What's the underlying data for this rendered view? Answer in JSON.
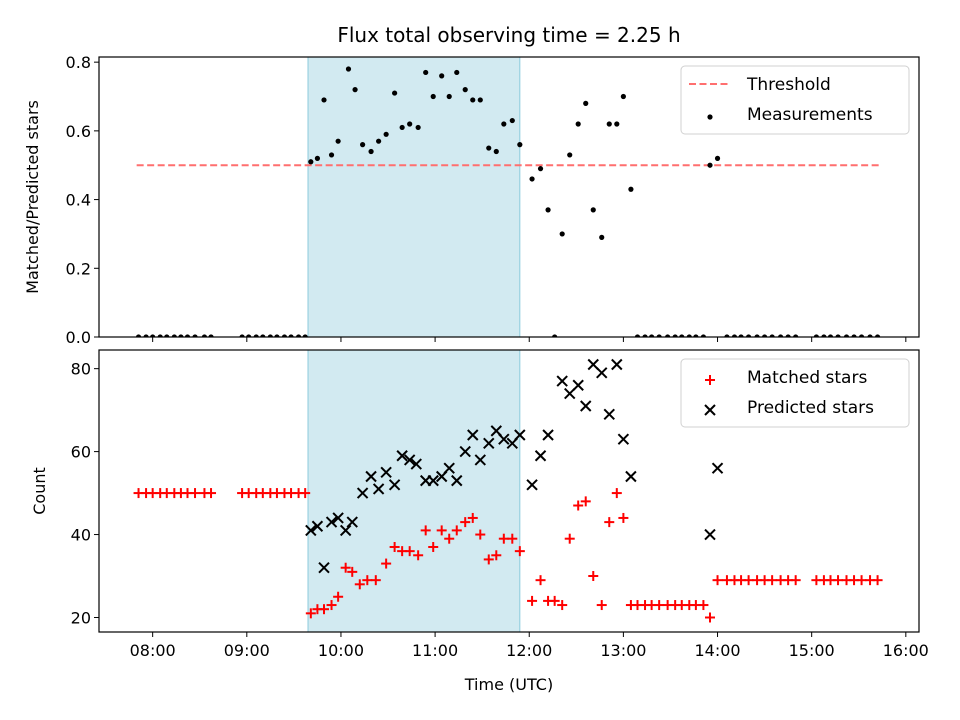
{
  "chart_data": {
    "title": "Flux total observing time = 2.25 h",
    "xlabel": "Time (UTC)",
    "x_tick_labels": [
      "08:00",
      "09:00",
      "10:00",
      "11:00",
      "12:00",
      "13:00",
      "14:00",
      "15:00",
      "16:00"
    ],
    "x_ticks_hours": [
      8,
      9,
      10,
      11,
      12,
      13,
      14,
      15,
      16
    ],
    "xlim_hours": [
      7.43,
      16.14
    ],
    "shaded_interval_hours": [
      9.65,
      11.9
    ],
    "shade_color": "#add8e6",
    "panels": [
      {
        "type": "scatter",
        "ylabel": "Matched/Predicted stars",
        "ylim": [
          0,
          0.815
        ],
        "y_ticks": [
          0.0,
          0.2,
          0.4,
          0.6,
          0.8
        ],
        "y_tick_labels": [
          "0.0",
          "0.2",
          "0.4",
          "0.6",
          "0.8"
        ],
        "legend_position": "top-right",
        "threshold": {
          "name": "Threshold",
          "value": 0.5,
          "x_range_hours": [
            7.83,
            15.73
          ],
          "color": "#ff6f6f"
        },
        "series": [
          {
            "name": "Measurements",
            "color": "#000000",
            "marker": "dot",
            "x_hours": [
              7.85,
              7.93,
              8.0,
              8.08,
              8.15,
              8.23,
              8.3,
              8.37,
              8.45,
              8.55,
              8.62,
              8.95,
              9.02,
              9.1,
              9.17,
              9.25,
              9.32,
              9.4,
              9.47,
              9.55,
              9.62,
              9.68,
              9.75,
              9.82,
              9.9,
              9.97,
              10.08,
              10.15,
              10.23,
              10.32,
              10.4,
              10.48,
              10.57,
              10.65,
              10.73,
              10.82,
              10.9,
              10.98,
              11.07,
              11.15,
              11.23,
              11.32,
              11.4,
              11.48,
              11.57,
              11.65,
              11.73,
              11.82,
              11.9,
              12.03,
              12.12,
              12.2,
              12.27,
              12.35,
              12.43,
              12.52,
              12.6,
              12.68,
              12.77,
              12.85,
              12.93,
              13.0,
              13.08,
              13.15,
              13.23,
              13.3,
              13.38,
              13.47,
              13.55,
              13.62,
              13.7,
              13.77,
              13.85,
              13.92,
              14.0,
              14.1,
              14.18,
              14.25,
              14.33,
              14.42,
              14.5,
              14.58,
              14.67,
              14.75,
              14.83,
              15.05,
              15.13,
              15.2,
              15.28,
              15.37,
              15.45,
              15.53,
              15.62,
              15.7
            ],
            "y": [
              0,
              0,
              0,
              0,
              0,
              0,
              0,
              0,
              0,
              0,
              0,
              0,
              0,
              0,
              0,
              0,
              0,
              0,
              0,
              0,
              0,
              0.51,
              0.52,
              0.69,
              0.53,
              0.57,
              0.78,
              0.72,
              0.56,
              0.54,
              0.57,
              0.59,
              0.71,
              0.61,
              0.62,
              0.61,
              0.77,
              0.7,
              0.76,
              0.7,
              0.77,
              0.72,
              0.69,
              0.69,
              0.55,
              0.54,
              0.62,
              0.63,
              0.56,
              0.46,
              0.49,
              0.37,
              0.0,
              0.3,
              0.53,
              0.62,
              0.68,
              0.37,
              0.29,
              0.62,
              0.62,
              0.7,
              0.43,
              0,
              0,
              0,
              0,
              0,
              0,
              0,
              0,
              0,
              0,
              0.5,
              0.52,
              0,
              0,
              0,
              0,
              0,
              0,
              0,
              0,
              0,
              0,
              0,
              0,
              0,
              0,
              0,
              0,
              0,
              0,
              0
            ]
          }
        ]
      },
      {
        "type": "scatter",
        "ylabel": "Count",
        "ylim": [
          16.5,
          84.5
        ],
        "y_ticks": [
          20,
          40,
          60,
          80
        ],
        "y_tick_labels": [
          "20",
          "40",
          "60",
          "80"
        ],
        "legend_position": "top-right",
        "series": [
          {
            "name": "Matched stars",
            "color": "#ff0000",
            "marker": "plus",
            "x_hours": [
              7.85,
              7.93,
              8.0,
              8.08,
              8.15,
              8.23,
              8.3,
              8.37,
              8.45,
              8.55,
              8.62,
              8.95,
              9.02,
              9.1,
              9.17,
              9.25,
              9.32,
              9.4,
              9.47,
              9.55,
              9.62,
              9.68,
              9.75,
              9.82,
              9.9,
              9.97,
              10.05,
              10.12,
              10.2,
              10.28,
              10.37,
              10.48,
              10.57,
              10.65,
              10.73,
              10.82,
              10.9,
              10.98,
              11.07,
              11.15,
              11.23,
              11.32,
              11.4,
              11.48,
              11.57,
              11.65,
              11.73,
              11.82,
              11.9,
              12.03,
              12.12,
              12.2,
              12.27,
              12.35,
              12.43,
              12.52,
              12.6,
              12.68,
              12.77,
              12.85,
              12.93,
              13.0,
              13.08,
              13.15,
              13.23,
              13.3,
              13.38,
              13.47,
              13.55,
              13.62,
              13.7,
              13.77,
              13.85,
              13.92,
              14.0,
              14.1,
              14.18,
              14.25,
              14.33,
              14.42,
              14.5,
              14.58,
              14.67,
              14.75,
              14.83,
              15.05,
              15.13,
              15.2,
              15.28,
              15.37,
              15.45,
              15.53,
              15.62,
              15.7
            ],
            "y": [
              50,
              50,
              50,
              50,
              50,
              50,
              50,
              50,
              50,
              50,
              50,
              50,
              50,
              50,
              50,
              50,
              50,
              50,
              50,
              50,
              50,
              21,
              22,
              22,
              23,
              25,
              32,
              31,
              28,
              29,
              29,
              33,
              37,
              36,
              36,
              35,
              41,
              37,
              41,
              39,
              41,
              43,
              44,
              40,
              34,
              35,
              39,
              39,
              36,
              24,
              29,
              24,
              24,
              23,
              39,
              47,
              48,
              30,
              23,
              43,
              50,
              44,
              23,
              23,
              23,
              23,
              23,
              23,
              23,
              23,
              23,
              23,
              23,
              20,
              29,
              29,
              29,
              29,
              29,
              29,
              29,
              29,
              29,
              29,
              29,
              29,
              29,
              29,
              29,
              29,
              29,
              29,
              29,
              29
            ]
          },
          {
            "name": "Predicted stars",
            "color": "#000000",
            "marker": "x",
            "x_hours": [
              9.68,
              9.75,
              9.82,
              9.9,
              9.97,
              10.05,
              10.12,
              10.23,
              10.32,
              10.4,
              10.48,
              10.57,
              10.65,
              10.73,
              10.8,
              10.9,
              10.98,
              11.07,
              11.15,
              11.23,
              11.32,
              11.4,
              11.48,
              11.57,
              11.65,
              11.73,
              11.82,
              11.9,
              12.03,
              12.12,
              12.2,
              12.35,
              12.43,
              12.52,
              12.6,
              12.68,
              12.77,
              12.85,
              12.93,
              13.0,
              13.08,
              13.92,
              14.0
            ],
            "y": [
              41,
              42,
              32,
              43,
              44,
              41,
              43,
              50,
              54,
              51,
              55,
              52,
              59,
              58,
              57,
              53,
              53,
              54,
              56,
              53,
              60,
              64,
              58,
              62,
              65,
              63,
              62,
              64,
              52,
              59,
              64,
              77,
              74,
              76,
              71,
              81,
              79,
              69,
              81,
              63,
              54,
              40,
              56
            ]
          }
        ]
      }
    ]
  }
}
